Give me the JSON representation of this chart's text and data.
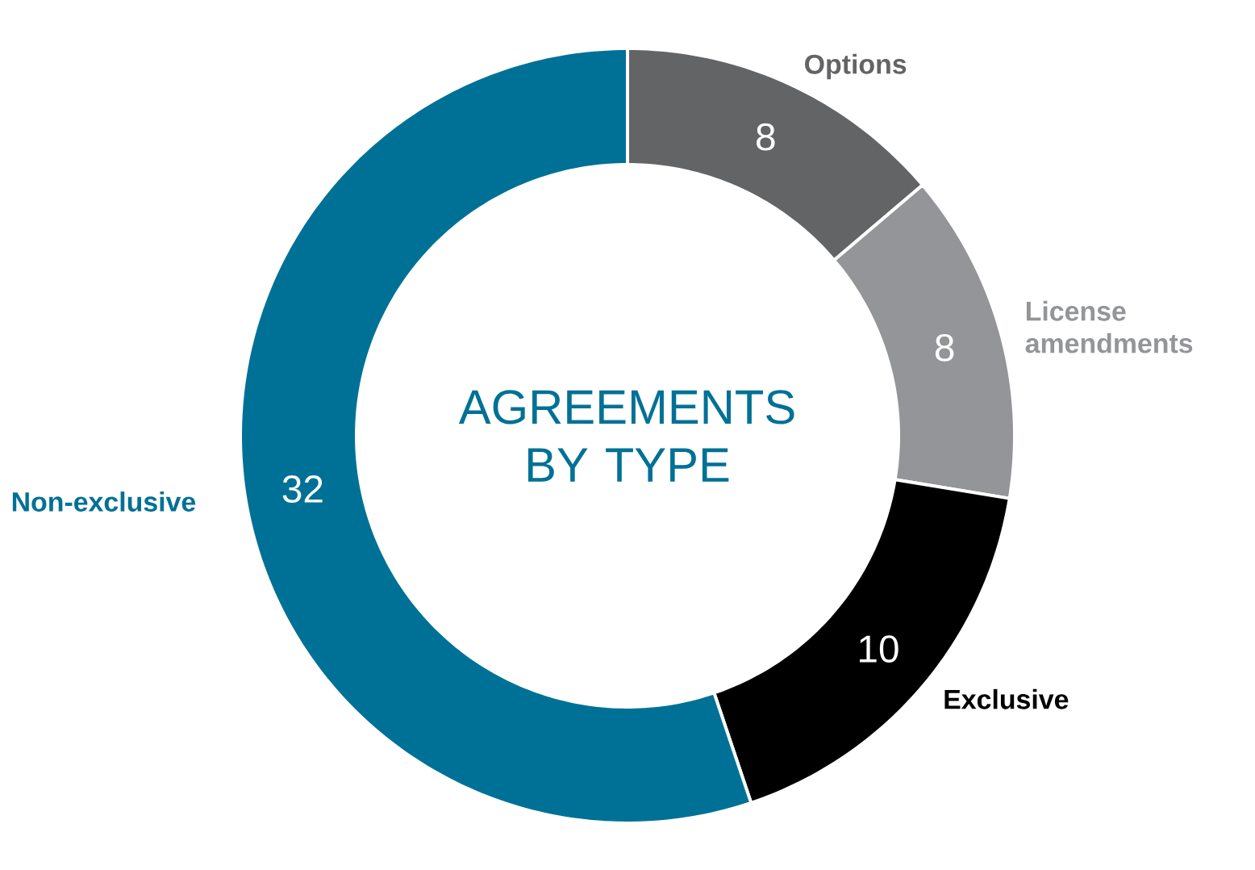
{
  "chart_data": {
    "type": "donut",
    "title": "AGREEMENTS BY TYPE",
    "categories": [
      "Options",
      "License amendments",
      "Exclusive",
      "Non-exclusive"
    ],
    "values": [
      8,
      8,
      10,
      32
    ],
    "colors": [
      "#636466",
      "#949598",
      "#000000",
      "#007196"
    ],
    "data_labels": true
  }
}
